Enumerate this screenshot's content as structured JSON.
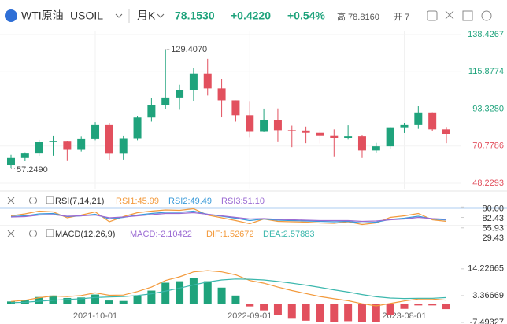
{
  "header": {
    "name": "WTI原油",
    "symbol": "USOIL",
    "period": "月K",
    "price": "78.1530",
    "change": "+0.4220",
    "change_pct": "+0.54%",
    "high": "高 78.8160",
    "open": "开 7"
  },
  "chart_data": [
    {
      "type": "candlestick",
      "up_color": "#1fa37c",
      "down_color": "#e2505e",
      "grid": true,
      "categories": [
        null,
        null,
        null,
        null,
        null,
        null,
        "2021-10-01",
        null,
        null,
        null,
        null,
        null,
        null,
        null,
        null,
        null,
        null,
        "2022-09-01",
        null,
        null,
        null,
        null,
        null,
        null,
        null,
        null,
        null,
        null,
        "2023-08-01",
        null,
        null,
        null
      ],
      "open": [
        59.2,
        63.6,
        66.3,
        73.5,
        73.9,
        68.5,
        75.0,
        83.6,
        66.2,
        75.2,
        88.2,
        95.7,
        100.3,
        104.7,
        114.7,
        105.8,
        98.6,
        89.6,
        79.5,
        86.5,
        80.5,
        80.3,
        78.9,
        77.0,
        75.7,
        76.8,
        68.1,
        70.6,
        81.8,
        83.6,
        90.8,
        81.0
      ],
      "high": [
        65.5,
        67.0,
        74.5,
        76.9,
        74.0,
        76.7,
        85.4,
        84.9,
        76.9,
        88.8,
        100.0,
        129.407,
        108.0,
        118.0,
        123.7,
        111.5,
        98.6,
        97.7,
        93.6,
        93.7,
        83.3,
        82.7,
        80.6,
        81.0,
        83.5,
        77.3,
        72.7,
        82.0,
        84.9,
        95.0,
        90.9,
        82.0
      ],
      "low": [
        57.249,
        61.6,
        64.5,
        65.0,
        61.7,
        67.5,
        74.3,
        62.4,
        62.6,
        74.3,
        85.7,
        93.5,
        92.9,
        98.2,
        101.5,
        88.3,
        85.7,
        76.2,
        79.3,
        73.6,
        70.1,
        72.5,
        72.3,
        64.1,
        74.8,
        63.6,
        66.9,
        69.0,
        78.8,
        81.3,
        79.8,
        72.5
      ],
      "close": [
        63.6,
        66.3,
        73.5,
        73.9,
        68.5,
        75.0,
        83.6,
        66.2,
        75.2,
        88.2,
        95.7,
        100.3,
        104.7,
        114.7,
        105.8,
        98.6,
        89.6,
        79.5,
        86.5,
        80.5,
        80.3,
        78.9,
        77.0,
        75.7,
        76.8,
        68.1,
        70.6,
        81.8,
        83.6,
        90.8,
        81.0,
        78.153
      ],
      "ylim": [
        48.2293,
        138.4267
      ],
      "yticks": [
        48.2293,
        70.7786,
        {
          "value": 93.328,
          "label": "93.3280"
        },
        115.8774,
        138.4267
      ],
      "annotations": [
        {
          "value": 129.407,
          "label": "129.4070"
        },
        {
          "value": 57.249,
          "label": "57.2490"
        }
      ]
    },
    {
      "type": "line",
      "title": "RSI(7,14,21)",
      "series": [
        {
          "name": "RSI1:45.99",
          "color": "#f39a3c",
          "values": [
            60,
            65,
            72,
            70,
            55,
            62,
            70,
            45,
            58,
            68,
            72,
            75,
            74,
            78,
            62,
            55,
            48,
            40,
            52,
            46,
            45,
            44,
            42,
            41,
            45,
            38,
            42,
            56,
            60,
            66,
            50,
            45.99
          ]
        },
        {
          "name": "RSI2:49.49",
          "color": "#3a9ad9",
          "values": [
            58,
            60,
            65,
            66,
            58,
            60,
            64,
            52,
            56,
            62,
            66,
            69,
            69,
            72,
            64,
            59,
            54,
            48,
            52,
            49,
            48,
            47,
            46,
            45,
            46,
            42,
            44,
            51,
            54,
            59,
            52,
            49.49
          ]
        },
        {
          "name": "RSI3:51.10",
          "color": "#9b6bd3",
          "values": [
            57,
            58,
            62,
            63,
            59,
            60,
            62,
            55,
            57,
            60,
            63,
            66,
            66,
            68,
            64,
            60,
            56,
            52,
            53,
            51,
            50,
            49,
            48,
            48,
            48,
            46,
            47,
            50,
            52,
            56,
            53,
            51.1
          ]
        }
      ],
      "ylim": [
        25,
        85
      ],
      "yticks": [
        29.43,
        55.93,
        82.43
      ],
      "reference_line": {
        "value": 80,
        "label": "80.00",
        "color": "#5b9be3"
      }
    },
    {
      "type": "macd",
      "title": "MACD(12,26,9)",
      "up_color": "#1fa37c",
      "down_color": "#e2505e",
      "series": [
        {
          "name": "MACD:-2.10422",
          "color": "#9b6bd3",
          "values": [
            1.0,
            1.6,
            2.8,
            3.4,
            2.4,
            2.6,
            3.8,
            1.4,
            1.2,
            3.2,
            5.4,
            8.6,
            9.2,
            10.6,
            9.2,
            6.6,
            3.4,
            -1.0,
            -2.6,
            -4.6,
            -6.0,
            -6.8,
            -7.4,
            -7.2,
            -7.0,
            -7.4,
            -7.4,
            -4.4,
            -2.0,
            -0.6,
            -0.6,
            -2.10422
          ]
        },
        {
          "name": "DIF:1.52672",
          "color": "#f39a3c",
          "values": [
            1,
            1.5,
            2.5,
            3.2,
            3,
            3.4,
            4.5,
            3.5,
            3.6,
            5,
            6.8,
            9.5,
            11,
            13,
            13.5,
            13,
            11.8,
            9.5,
            8.4,
            6.8,
            5.4,
            4.2,
            3.0,
            2.1,
            1.3,
            0.1,
            -0.8,
            0.2,
            1.2,
            2.0,
            2.0,
            1.52672
          ]
        },
        {
          "name": "DEA:2.57883",
          "color": "#3bb7ad",
          "values": [
            0.5,
            0.7,
            1.1,
            1.5,
            1.8,
            2.1,
            2.6,
            2.8,
            3,
            3.4,
            4.1,
            5.2,
            6.4,
            7.7,
            8.9,
            9.7,
            10.1,
            10,
            9.7,
            9.1,
            8.4,
            7.6,
            6.7,
            5.7,
            4.8,
            3.8,
            2.9,
            2.4,
            2.2,
            2.3,
            2.3,
            2.57883
          ]
        }
      ],
      "ylim": [
        -7.49327,
        18
      ],
      "yticks": [
        -7.49327,
        3.36669,
        14.22665
      ]
    }
  ]
}
